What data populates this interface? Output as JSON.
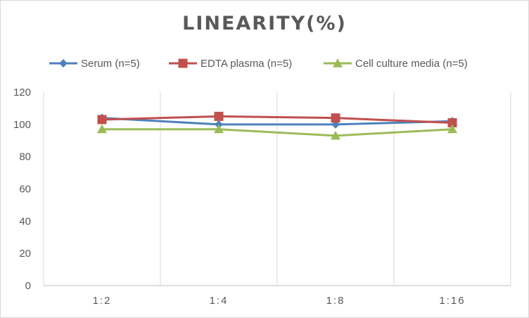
{
  "chart_data": {
    "type": "line",
    "title": "LINEARITY(%)",
    "categories": [
      "1:2",
      "1:4",
      "1:8",
      "1:16"
    ],
    "series": [
      {
        "name": "Serum (n=5)",
        "values": [
          104,
          100,
          100,
          102
        ],
        "color": "#4f81bd",
        "marker": "diamond"
      },
      {
        "name": "EDTA plasma (n=5)",
        "values": [
          103,
          105,
          104,
          101
        ],
        "color": "#c0504d",
        "marker": "square"
      },
      {
        "name": "Cell culture media (n=5)",
        "values": [
          97,
          97,
          93,
          97
        ],
        "color": "#9bbb59",
        "marker": "triangle"
      }
    ],
    "yticks": [
      0,
      20,
      40,
      60,
      80,
      100,
      120
    ],
    "ylim": [
      0,
      120
    ],
    "grid": "vertical",
    "legend_position": "top"
  }
}
